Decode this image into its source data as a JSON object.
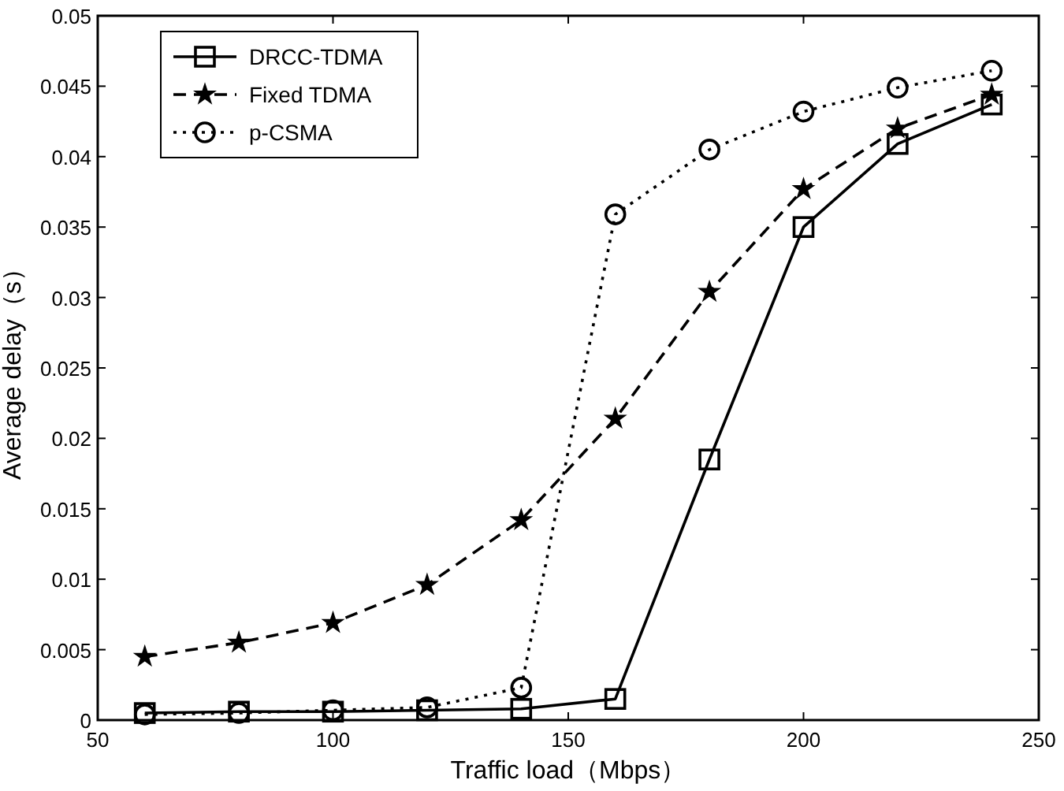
{
  "chart_data": {
    "type": "line",
    "xlabel": "Traffic load（Mbps）",
    "ylabel": "Average delay（s）",
    "x": [
      60,
      80,
      100,
      120,
      140,
      160,
      180,
      200,
      220,
      240
    ],
    "xlim": [
      50,
      250
    ],
    "xticks": [
      50,
      100,
      150,
      200,
      250
    ],
    "ylim": [
      0,
      0.05
    ],
    "yticks": [
      0,
      0.005,
      0.01,
      0.015,
      0.02,
      0.025,
      0.03,
      0.035,
      0.04,
      0.045,
      0.05
    ],
    "legend": "top left",
    "grid": false,
    "series": [
      {
        "name": "DRCC-TDMA",
        "color": "#000000",
        "marker": "square",
        "line_style": "solid",
        "values": [
          0.0005,
          0.0006,
          0.0006,
          0.0007,
          0.0008,
          0.0015,
          0.0185,
          0.035,
          0.0409,
          0.0437
        ]
      },
      {
        "name": "Fixed TDMA",
        "color": "#000000",
        "marker": "star",
        "line_style": "dashed",
        "values": [
          0.0045,
          0.0055,
          0.0069,
          0.0096,
          0.0142,
          0.0214,
          0.0304,
          0.0377,
          0.042,
          0.0444
        ]
      },
      {
        "name": "p-CSMA",
        "color": "#000000",
        "marker": "circle",
        "line_style": "dotted",
        "values": [
          0.0004,
          0.0005,
          0.0007,
          0.0009,
          0.0023,
          0.0359,
          0.0405,
          0.0432,
          0.0449,
          0.0461
        ]
      }
    ]
  }
}
